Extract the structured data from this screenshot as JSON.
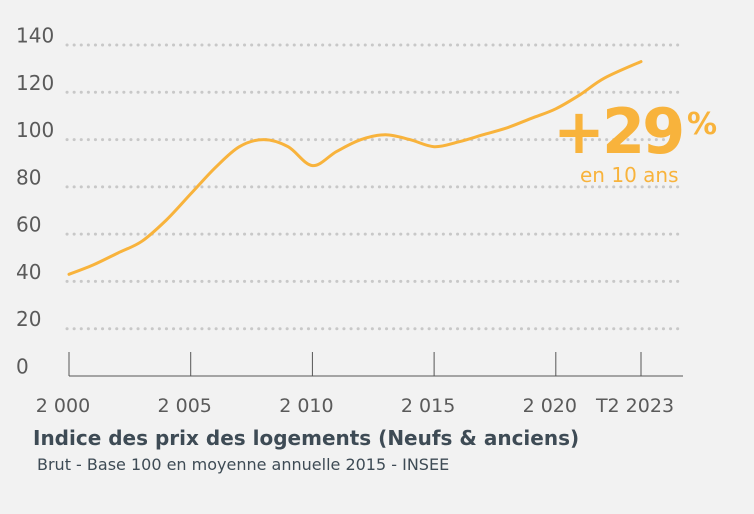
{
  "colors": {
    "line": "#f8b33c",
    "grid": "#c8c8c8",
    "axis": "#555555",
    "text": "#5a5a5a",
    "title": "#3e4b55"
  },
  "callout": {
    "value": "+29",
    "percent": "%",
    "caption": "en 10 ans"
  },
  "chart_data": {
    "type": "line",
    "title": "Indice des prix des logements (Neufs & anciens)",
    "subtitle": "Brut - Base 100 en moyenne annuelle 2015 - INSEE",
    "xlabel": "",
    "ylabel": "",
    "ylim": [
      0,
      140
    ],
    "xlim": [
      2000,
      2023.5
    ],
    "yticks": [
      0,
      20,
      40,
      60,
      80,
      100,
      120,
      140
    ],
    "xticks": [
      {
        "value": 2000,
        "label": "2 000"
      },
      {
        "value": 2005,
        "label": "2 005"
      },
      {
        "value": 2010,
        "label": "2 010"
      },
      {
        "value": 2015,
        "label": "2 015"
      },
      {
        "value": 2020,
        "label": "2 020"
      },
      {
        "value": 2023.5,
        "label": "T2 2023"
      }
    ],
    "grid": true,
    "series": [
      {
        "x": [
          2000,
          2001,
          2002,
          2003,
          2004,
          2005,
          2006,
          2007,
          2008,
          2009,
          2010,
          2011,
          2012,
          2013,
          2014,
          2015,
          2016,
          2017,
          2018,
          2019,
          2020,
          2021,
          2022,
          2023.5
        ],
        "values": [
          43,
          47,
          52,
          57,
          66,
          77,
          88,
          97,
          100,
          97,
          89,
          95,
          100,
          102,
          100,
          97,
          99,
          102,
          105,
          109,
          113,
          119,
          126,
          133
        ]
      }
    ]
  }
}
